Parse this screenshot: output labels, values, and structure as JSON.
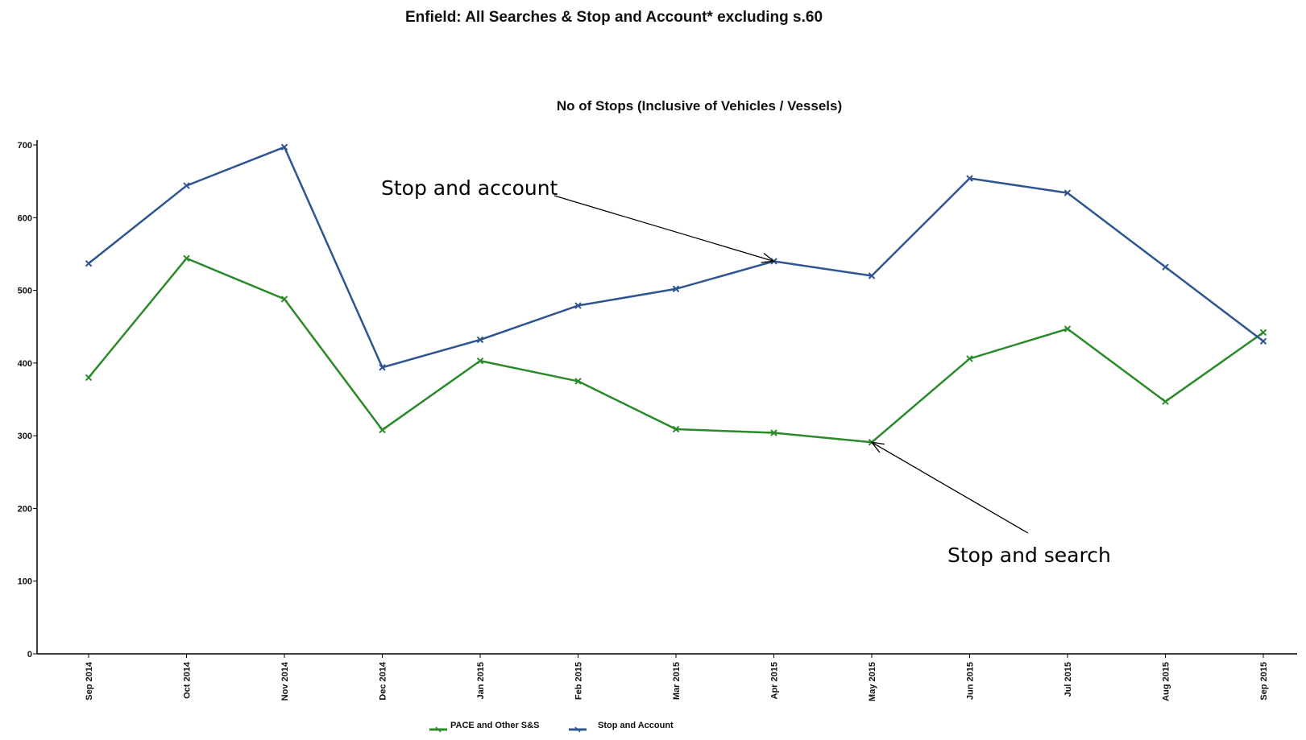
{
  "chart_data": {
    "type": "line",
    "title": "Enfield: All Searches & Stop and Account* excluding s.60",
    "subtitle": "No of Stops (Inclusive of Vehicles / Vessels)",
    "xlabel": "",
    "ylabel": "",
    "ylim": [
      0,
      700
    ],
    "yticks": [
      "0",
      "100",
      "200",
      "300",
      "400",
      "500",
      "600",
      "700"
    ],
    "categories": [
      "Sep 2014",
      "Oct 2014",
      "Nov 2014",
      "Dec 2014",
      "Jan 2015",
      "Feb 2015",
      "Mar 2015",
      "Apr 2015",
      "May 2015",
      "Jun 2015",
      "Jul 2015",
      "Aug 2015",
      "Sep 2015"
    ],
    "grid": false,
    "legend_position": "bottom",
    "series": [
      {
        "name": "PACE and Other S&S",
        "color": "#2a8a2a",
        "values": [
          380,
          544,
          488,
          308,
          403,
          375,
          309,
          304,
          291,
          406,
          447,
          347,
          442
        ]
      },
      {
        "name": "Stop and Account",
        "color": "#2e5590",
        "values": [
          537,
          644,
          697,
          394,
          432,
          479,
          502,
          540,
          520,
          654,
          634,
          532,
          430
        ]
      }
    ],
    "annotations": [
      {
        "text": "Stop and account",
        "series": "Stop and Account",
        "point_index": 7
      },
      {
        "text": "Stop and search",
        "series": "PACE and Other S&S",
        "point_index": 8
      }
    ]
  }
}
